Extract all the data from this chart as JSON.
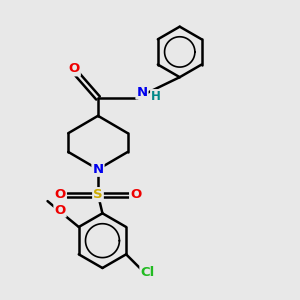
{
  "background_color": "#e8e8e8",
  "bond_color": "#000000",
  "atom_colors": {
    "N": "#0000ee",
    "O": "#ee0000",
    "S": "#ccaa00",
    "Cl": "#22bb22",
    "H": "#008888",
    "C": "#000000"
  },
  "figsize": [
    3.0,
    3.0
  ],
  "dpi": 100
}
